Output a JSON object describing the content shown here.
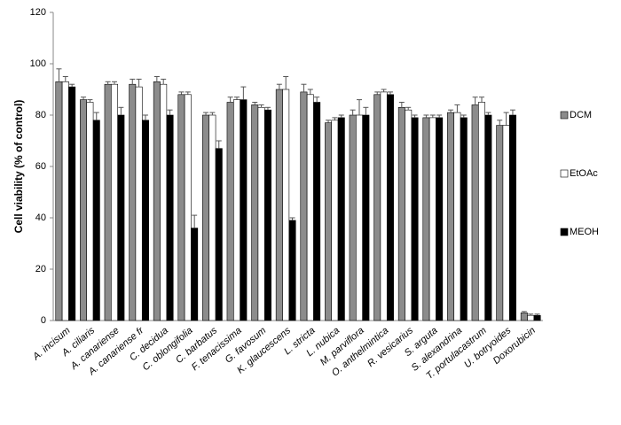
{
  "chart_data": {
    "type": "bar",
    "y_label": "Cell viability (% of control)",
    "categories": [
      "A. incisum",
      "A. ciliaris",
      "A. canariense",
      "A. canariense fr",
      "C. decidua",
      "C. oblongifolia",
      "C. barbatus",
      "F. tenacissima",
      "G. favosum",
      "K. glaucescens",
      "L. stricta",
      "L. nubica",
      "M. parviflora",
      "O. anthelmintica",
      "R. vesicarius",
      "S. arguta",
      "S. alexandrina",
      "T. portulacastrum",
      "U. botryoides",
      "Doxorubicin"
    ],
    "series": [
      {
        "name": "DCM",
        "color": "#8c8c8c",
        "values": [
          93,
          86,
          92,
          92,
          93,
          88,
          80,
          85,
          84,
          90,
          89,
          77,
          80,
          88,
          83,
          79,
          81,
          84,
          76,
          3
        ],
        "errors": [
          5,
          1,
          1,
          2,
          2,
          1,
          1,
          2,
          1,
          2,
          3,
          1,
          2,
          1,
          2,
          1,
          1,
          3,
          2,
          0.5
        ]
      },
      {
        "name": "EtOAc",
        "color": "#ffffff",
        "values": [
          93,
          85,
          92,
          91,
          92,
          88,
          80,
          86,
          83,
          90,
          88,
          78,
          80,
          89,
          82,
          79,
          81,
          85,
          76,
          2
        ],
        "errors": [
          2,
          1,
          1,
          3,
          2,
          1,
          1,
          1,
          1,
          5,
          2,
          1,
          6,
          1,
          1,
          1,
          3,
          2,
          5,
          0.5
        ]
      },
      {
        "name": "MEOH",
        "color": "#000000",
        "values": [
          91,
          78,
          80,
          78,
          80,
          36,
          67,
          86,
          82,
          39,
          85,
          79,
          80,
          88,
          79,
          79,
          79,
          80,
          80,
          2
        ],
        "errors": [
          1,
          3,
          3,
          2,
          2,
          5,
          3,
          5,
          1,
          1,
          2,
          1,
          3,
          1,
          1,
          1,
          1,
          1,
          2,
          0.5
        ]
      }
    ],
    "ylim": [
      0,
      120
    ],
    "yticks": [
      0,
      20,
      40,
      60,
      80,
      100,
      120
    ],
    "grid": false,
    "legend": "right"
  }
}
